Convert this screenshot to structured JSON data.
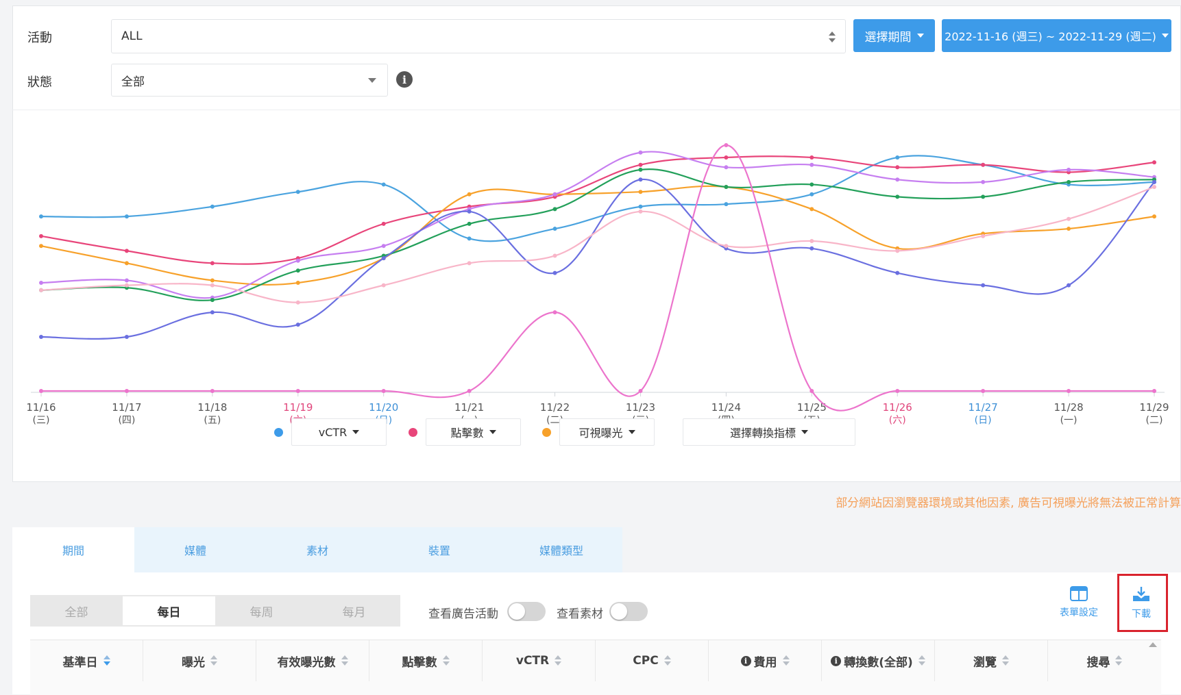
{
  "filters": {
    "activity_label": "活動",
    "activity_value": "ALL",
    "status_label": "狀態",
    "status_value": "全部",
    "period_button": "選擇期間",
    "date_range": "2022-11-16 (週三) ~ 2022-11-29 (週二)"
  },
  "chart_data": {
    "type": "line",
    "x": [
      "11/16",
      "11/17",
      "11/18",
      "11/19",
      "11/20",
      "11/21",
      "11/22",
      "11/23",
      "11/24",
      "11/25",
      "11/26",
      "11/27",
      "11/28",
      "11/29"
    ],
    "x_weekday": [
      "(三)",
      "(四)",
      "(五)",
      "(六)",
      "(日)",
      "(一)",
      "(二)",
      "(三)",
      "(四)",
      "(五)",
      "(六)",
      "(日)",
      "(一)",
      "(二)"
    ],
    "x_colors": [
      "#555",
      "#555",
      "#555",
      "#e0457b",
      "#3d8fd6",
      "#555",
      "#555",
      "#555",
      "#555",
      "#555",
      "#e0457b",
      "#3d8fd6",
      "#555",
      "#555"
    ],
    "ylim": [
      0,
      100
    ],
    "grid": false,
    "series": [
      {
        "color": "#4aa3df",
        "values": [
          71,
          71,
          75,
          81,
          84,
          62,
          66,
          75,
          76,
          80,
          95,
          92,
          84,
          85
        ]
      },
      {
        "color": "#e8457a",
        "values": [
          63,
          57,
          52,
          54,
          68,
          75,
          79,
          92,
          95,
          95,
          91,
          92,
          89,
          93
        ]
      },
      {
        "color": "#f7a12a",
        "values": [
          59,
          52,
          45,
          44,
          54,
          80,
          80,
          81,
          83,
          74,
          58,
          64,
          66,
          71
        ]
      },
      {
        "color": "#c67ef0",
        "values": [
          44,
          45,
          38,
          53,
          59,
          74,
          80,
          97,
          91,
          92,
          86,
          85,
          90,
          87
        ]
      },
      {
        "color": "#23a05a",
        "values": [
          41,
          42,
          37,
          49,
          55,
          68,
          74,
          90,
          83,
          84,
          79,
          79,
          85,
          86
        ]
      },
      {
        "color": "#6a6fe0",
        "values": [
          22,
          22,
          32,
          27,
          54,
          73,
          48,
          86,
          58,
          58,
          48,
          43,
          43,
          85
        ]
      },
      {
        "color": "#f8b5c8",
        "values": [
          41,
          43,
          43,
          36,
          43,
          52,
          55,
          73,
          59,
          61,
          57,
          63,
          70,
          83
        ]
      },
      {
        "color": "#ec74cc",
        "values": [
          0,
          0,
          0,
          0,
          0,
          0,
          32,
          0,
          100,
          0,
          0,
          0,
          0,
          0
        ]
      }
    ]
  },
  "legend": {
    "items": [
      {
        "dot_color": "#3d9be9",
        "label": "vCTR"
      },
      {
        "dot_color": "#e8457a",
        "label": "點擊數"
      },
      {
        "dot_color": "#f7a12a",
        "label": "可視曝光"
      }
    ],
    "conversion_label": "選擇轉換指標"
  },
  "notice": "部分網站因瀏覽器環境或其他因素, 廣告可視曝光將無法被正常計算",
  "tabs": [
    "期間",
    "媒體",
    "素材",
    "裝置",
    "媒體類型"
  ],
  "period_seg": [
    "全部",
    "每日",
    "每周",
    "每月"
  ],
  "toggles": {
    "campaign": "查看廣告活動",
    "creative": "查看素材"
  },
  "tools": {
    "table_settings": "表單設定",
    "download": "下載"
  },
  "columns": [
    "基準日",
    "曝光",
    "有效曝光數",
    "點擊數",
    "vCTR",
    "CPC",
    "費用",
    "轉換數(全部)",
    "瀏覽",
    "搜尋"
  ]
}
